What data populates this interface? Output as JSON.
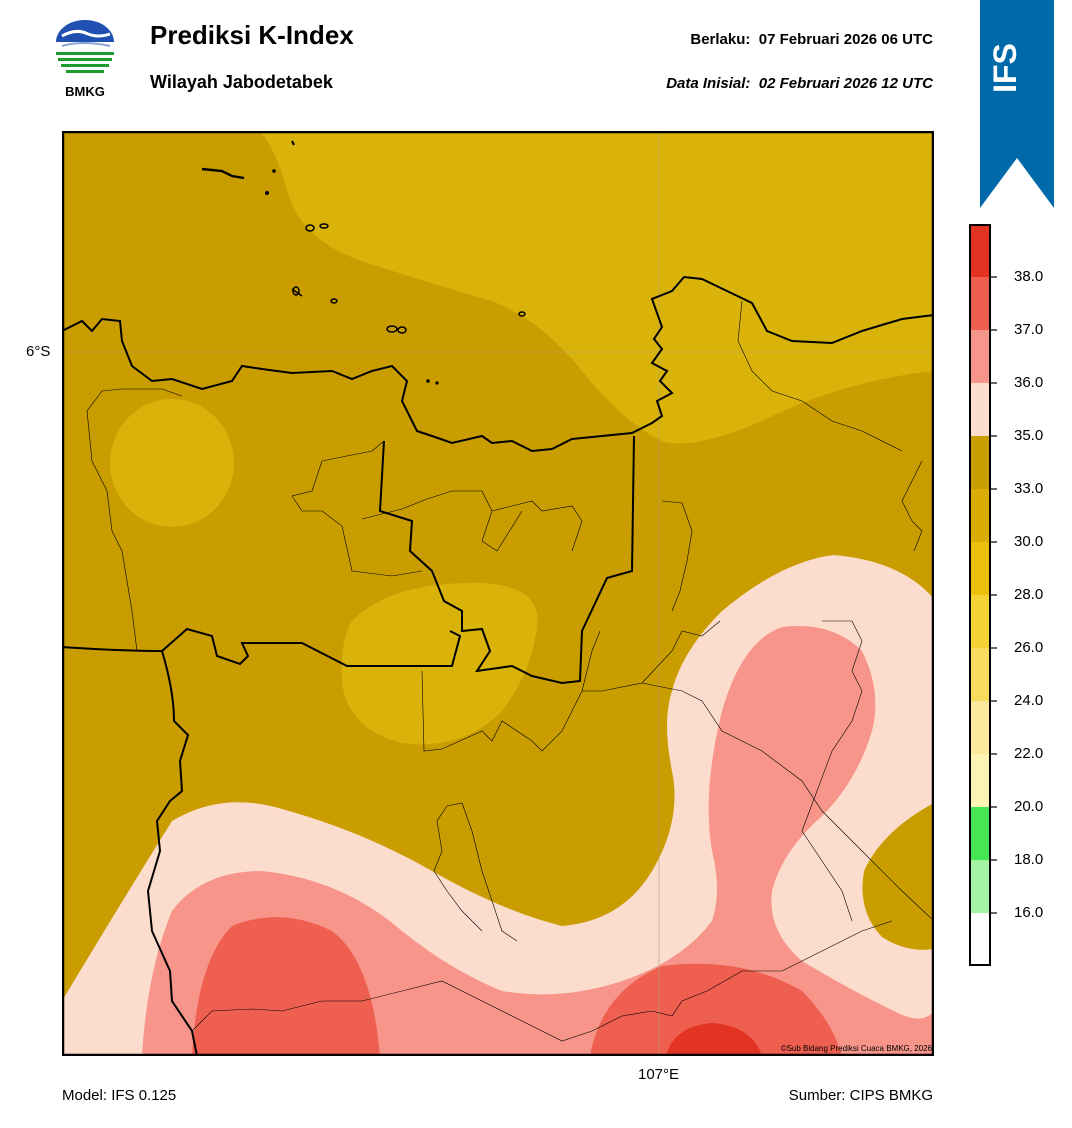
{
  "header": {
    "title": "Prediksi K-Index",
    "subtitle": "Wilayah Jabodetabek",
    "valid_label": "Berlaku:",
    "valid_time": "07 Februari 2026 06 UTC",
    "init_label": "Data Inisial:",
    "init_time": "02 Februari 2026 12 UTC"
  },
  "logo": {
    "text": "BMKG",
    "icon": "bmkg-logo-icon"
  },
  "ribbon": {
    "label": "IFS",
    "color": "#0069a9"
  },
  "map": {
    "lat_label": "6°S",
    "lon_label": "107°E",
    "copyright": "©Sub Bidang Prediksi Cuaca BMKG, 2026"
  },
  "footer": {
    "model": "Model: IFS 0.125",
    "source": "Sumber: CIPS BMKG"
  },
  "colorbar": {
    "ticks": [
      "38.0",
      "37.0",
      "36.0",
      "35.0",
      "33.0",
      "30.0",
      "28.0",
      "26.0",
      "24.0",
      "22.0",
      "20.0",
      "18.0",
      "16.0"
    ],
    "colors": [
      "#e23323",
      "#ef5f4f",
      "#f7958a",
      "#fcdccd",
      "#c99d00",
      "#d9ad05",
      "#ecc10c",
      "#f4d233",
      "#f6dc5a",
      "#fae99b",
      "#fcf4b3",
      "#44e653",
      "#a2f5a2",
      "#ffffff"
    ]
  }
}
